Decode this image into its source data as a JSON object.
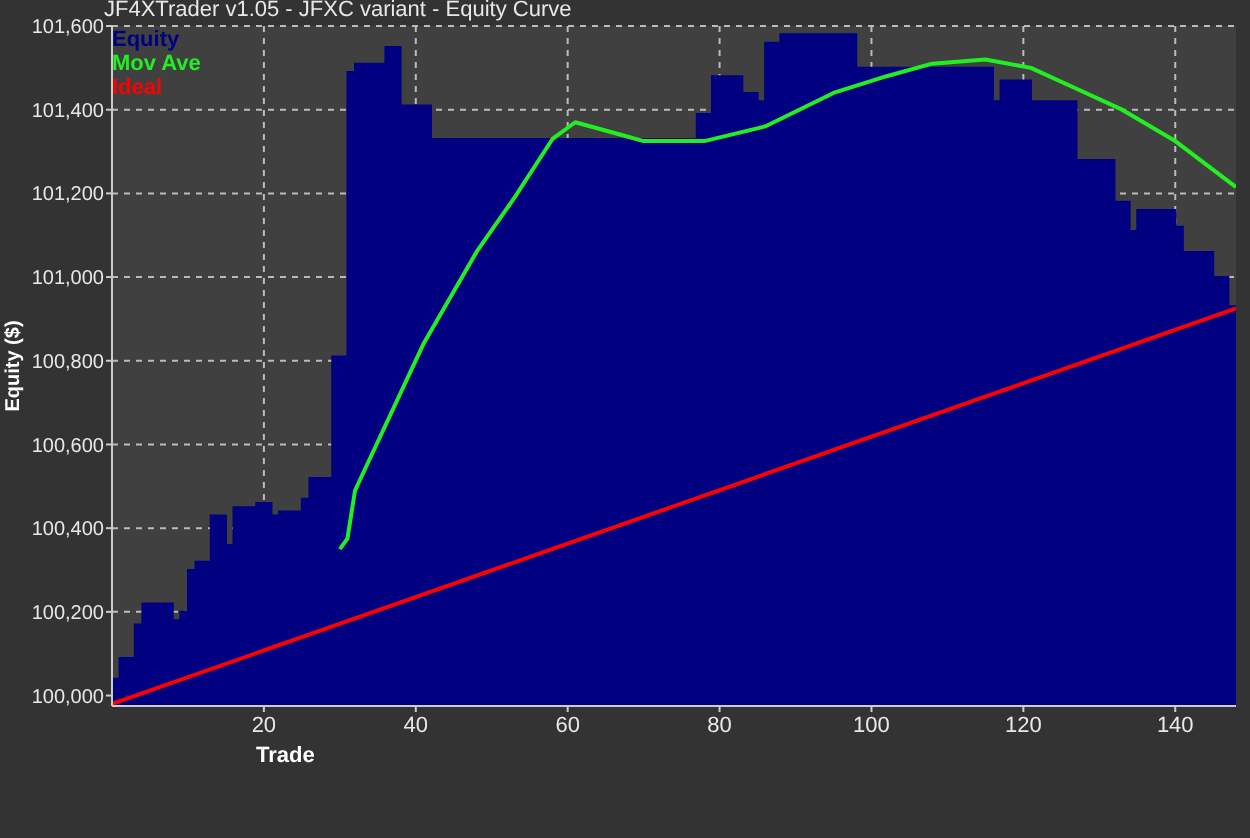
{
  "chart_data": {
    "type": "line",
    "title": "JF4XTrader v1.05 - JFXC variant - Equity Curve",
    "xlabel": "Trade",
    "ylabel": "Equity ($)",
    "xlim": [
      0,
      148
    ],
    "xticks": [
      20,
      40,
      60,
      80,
      100,
      120,
      140
    ],
    "ylim": [
      99975,
      101600
    ],
    "yticks": [
      {
        "value": 100000,
        "label": "100,000"
      },
      {
        "value": 100200,
        "label": "100,200"
      },
      {
        "value": 100400,
        "label": "100,400"
      },
      {
        "value": 100600,
        "label": "100,600"
      },
      {
        "value": 100800,
        "label": "100,800"
      },
      {
        "value": 101000,
        "label": "101,000"
      },
      {
        "value": 101200,
        "label": "101,200"
      },
      {
        "value": 101400,
        "label": "101,400"
      },
      {
        "value": 101600,
        "label": "101,600"
      }
    ],
    "grid": true,
    "legend": "top left",
    "series": [
      {
        "name": "Equity",
        "type": "area",
        "color": "#000080",
        "x": [
          0,
          1,
          1,
          3,
          3,
          4,
          4,
          8,
          8,
          9,
          9,
          10,
          10,
          11,
          11,
          13,
          13,
          15,
          15,
          16,
          16,
          19,
          19,
          21,
          21,
          22,
          22,
          25,
          25,
          26,
          26,
          29,
          29,
          31,
          31,
          32,
          32,
          36,
          36,
          38,
          38,
          42,
          42,
          77,
          77,
          79,
          79,
          83,
          83,
          85,
          85,
          86,
          86,
          88,
          88,
          98,
          98,
          116,
          116,
          117,
          117,
          121,
          121,
          127,
          127,
          132,
          132,
          134,
          134,
          135,
          135,
          140,
          140,
          141,
          141,
          145,
          145,
          147,
          147,
          148
        ],
        "values": [
          100040,
          100040,
          100090,
          100090,
          100170,
          100170,
          100220,
          100220,
          100180,
          100180,
          100200,
          100200,
          100300,
          100300,
          100320,
          100320,
          100430,
          100430,
          100360,
          100360,
          100450,
          100450,
          100460,
          100460,
          100430,
          100430,
          100440,
          100440,
          100470,
          100470,
          100520,
          100520,
          100810,
          100810,
          101490,
          101490,
          101510,
          101510,
          101550,
          101550,
          101410,
          101410,
          101330,
          101330,
          101390,
          101390,
          101480,
          101480,
          101440,
          101440,
          101420,
          101420,
          101560,
          101560,
          101580,
          101580,
          101500,
          101500,
          101420,
          101420,
          101470,
          101470,
          101420,
          101420,
          101280,
          101280,
          101180,
          101180,
          101110,
          101110,
          101160,
          101160,
          101120,
          101120,
          101060,
          101060,
          101000,
          101000,
          100930,
          100930
        ]
      },
      {
        "name": "Mov Ave",
        "color": "#22ee22",
        "x": [
          30,
          31,
          32,
          41,
          48,
          53,
          58,
          61,
          67,
          70,
          78,
          86,
          95,
          102,
          108,
          115,
          121,
          127,
          133,
          140,
          148
        ],
        "values": [
          100350,
          100375,
          100490,
          100840,
          101060,
          101190,
          101330,
          101370,
          101340,
          101325,
          101325,
          101360,
          101440,
          101480,
          101510,
          101520,
          101500,
          101450,
          101400,
          101325,
          101215
        ]
      },
      {
        "name": "Ideal",
        "color": "#ff0000",
        "x": [
          0,
          148
        ],
        "values": [
          99980,
          100925
        ]
      }
    ]
  }
}
